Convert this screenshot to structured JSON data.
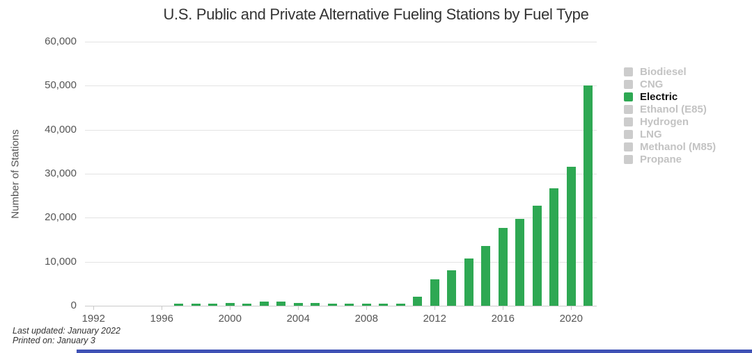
{
  "chart_data": {
    "type": "bar",
    "title": "U.S. Public and Private Alternative Fueling Stations by Fuel Type",
    "xlabel": "",
    "ylabel": "Number of Stations",
    "ylim": [
      0,
      60000
    ],
    "yticks": [
      0,
      10000,
      20000,
      30000,
      40000,
      50000,
      60000
    ],
    "xticks": [
      1992,
      1996,
      2000,
      2004,
      2008,
      2012,
      2016,
      2020
    ],
    "x_range": [
      1992,
      2021
    ],
    "grid": true,
    "legend_position": "right",
    "series": [
      {
        "name": "Electric",
        "color": "#2EA853",
        "years": [
          1997,
          1998,
          1999,
          2000,
          2001,
          2002,
          2003,
          2004,
          2005,
          2006,
          2007,
          2008,
          2009,
          2010,
          2011,
          2012,
          2013,
          2014,
          2015,
          2016,
          2017,
          2018,
          2019,
          2020,
          2021
        ],
        "values": [
          400,
          420,
          400,
          650,
          550,
          1000,
          900,
          650,
          650,
          400,
          400,
          400,
          450,
          550,
          2000,
          6000,
          8000,
          10700,
          13600,
          17700,
          19700,
          22800,
          26700,
          31600,
          50000
        ]
      }
    ],
    "legend": [
      {
        "label": "Biodiesel",
        "active": false
      },
      {
        "label": "CNG",
        "active": false
      },
      {
        "label": "Electric",
        "active": true
      },
      {
        "label": "Ethanol (E85)",
        "active": false
      },
      {
        "label": "Hydrogen",
        "active": false
      },
      {
        "label": "LNG",
        "active": false
      },
      {
        "label": "Methanol (M85)",
        "active": false
      },
      {
        "label": "Propane",
        "active": false
      }
    ]
  },
  "footer": {
    "last_updated": "Last updated: January 2022",
    "printed_on": "Printed on: January 3"
  },
  "theme": {
    "bar_green": "#2EA853",
    "inactive_swatch_gray": "#cccccc",
    "inactive_text_gray": "#c3c3c3",
    "active_text": "#111111",
    "gridline_gray": "#e3e3e3",
    "axis_gray": "#c9c9c9",
    "bottom_strip_blue": "#3f51b5"
  }
}
